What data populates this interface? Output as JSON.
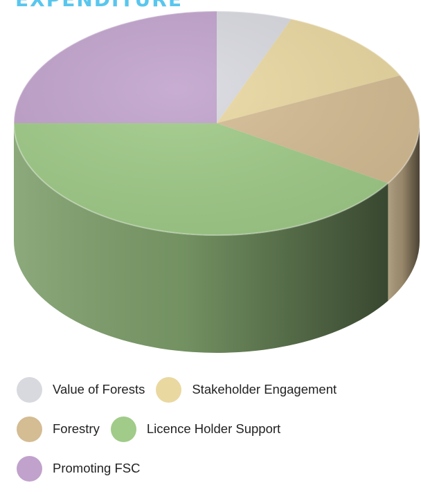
{
  "page": {
    "title": "EXPENDITURE"
  },
  "chart_data": {
    "type": "pie",
    "title": "EXPENDITURE",
    "unit": "%",
    "series": [
      {
        "name": "Value of Forests",
        "value": 6,
        "color": "#d8d9df"
      },
      {
        "name": "Stakeholder Engagement",
        "value": 12,
        "color": "#ead8a1"
      },
      {
        "name": "Forestry",
        "value": 16,
        "color": "#d4bc93"
      },
      {
        "name": "Licence Holder Support",
        "value": 41,
        "color": "#a0cb88"
      },
      {
        "name": "Promoting FSC",
        "value": 25,
        "color": "#c1a2cc"
      }
    ],
    "legend_position": "bottom",
    "style": "3d-cylinder"
  }
}
